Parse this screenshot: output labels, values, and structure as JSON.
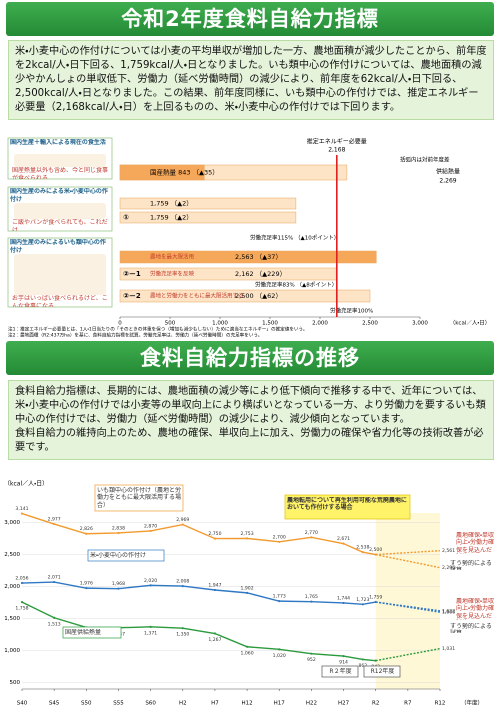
{
  "header": {
    "title": "令和2年度食料自給力指標"
  },
  "intro": "米・小麦中心の作付けについては小麦の平均単収が増加した一方、農地面積が減少したことから、前年度を2kcal/人・日下回る、1,759kcal/人・日となりました。いも類中心の作付けについては、農地面積の減少やかんしょの単収低下、労働力（延べ労働時間）の減少により、前年度を62kcal/人・日下回る、2,500kcal/人・日となりました。この結果、前年度同様に、いも類中心の作付けでは、推定エネルギー必要量（2,168kcal/人・日）を上回るものの、米・小麦中心の作付けでは下回ります。",
  "section2": {
    "title": "食料自給力指標の推移",
    "paragraphs": [
      "食料自給力指標は、長期的には、農地面積の減少等により低下傾向で推移する中で、近年については、米・小麦中心の作付けでは小麦等の単収向上により横ばいとなっている一方、より労働力を要するいも類中心の作付けでは、労働力（延べ労働時間）の減少により、減少傾向となっています。",
      "食料自給力の維持向上のため、農地の確保、単収向上に加え、労働力の確保や省力化等の技術改善が必要です。"
    ]
  },
  "chart_data": [
    {
      "type": "hbar",
      "note": "括弧内は対前年度差",
      "x_label": "（kcal／人・日）",
      "xlim": [
        0,
        3000
      ],
      "xticks": [
        0,
        500,
        {
          "value": 1000,
          "label": "1,000"
        },
        {
          "value": 1500,
          "label": "1,500"
        },
        {
          "value": 2000,
          "label": "2,000"
        },
        {
          "value": 2500,
          "label": "2,500"
        },
        {
          "value": 3000,
          "label": "3,000"
        }
      ],
      "reference": {
        "label": "推定エネルギー必要量",
        "value": 2168,
        "value_label": "2,168",
        "color": "#e02020"
      },
      "supply": {
        "label": "供給熱量",
        "value": 2269,
        "value_label": "2,269",
        "color": "#fde4c6"
      },
      "groups": [
        {
          "label": "国内生産＋輸入による現在の食生活",
          "caption": "国産熱量以外も含め、今と同じ食事が食べられる",
          "bars": [
            {
              "value": 843,
              "text": "国産熱量 843 （▲35）",
              "color": "#f6a85a"
            }
          ]
        },
        {
          "label": "国内生産のみによる米・小麦中心の作付け",
          "caption": "ご飯やパンが食べられても、これだけ",
          "bars": [
            {
              "value": 1759,
              "text": "1,759 （▲2）",
              "color": "#fde4c6"
            },
            {
              "value": 1759,
              "text": "1,759 （▲2）",
              "color": "#fde4c6",
              "marker": "①"
            }
          ],
          "ratios": [
            "労働充足率115% （▲10ポイント）"
          ]
        },
        {
          "label": "国内生産のみによるいも類中心の作付け",
          "caption": "お芋はいっぱい食べられるけど、こんな食事になる",
          "bars": [
            {
              "value": 2563,
              "text": "2,563 （▲37）",
              "tag": "農地を最大限活用",
              "color": "#f6a85a"
            },
            {
              "value": 2162,
              "text": "2,162 （▲229）",
              "tag": "労働充足率を反映",
              "color": "#fde4c6",
              "marker": "②－1"
            },
            {
              "value": 2500,
              "text": "2,500 （▲62）",
              "tag": "農地と労働力をともに最大限活用する",
              "color": "#fde4c6",
              "marker": "②－2"
            }
          ],
          "ratios": [
            "労働充足率83% （▲8ポイント）",
            "労働充足率100%"
          ]
        }
      ],
      "footnotes": [
        "注1：推定エネルギー必要量とは、1人・1日当たりの「そのときの体重を保つ（増加も減少もしない）ために適当なエネルギー」の推定値をいう。",
        "注2：農地面積（R2:437万ha）を基に、食料自給力指標を試算。労働充足率は、労働力（延べ労働時間）の充足率をいう。"
      ]
    },
    {
      "type": "line",
      "y_label": "（kcal／人・日）",
      "x_label": "（年度）",
      "x": [
        1965,
        1970,
        1975,
        1980,
        1985,
        1990,
        1995,
        2000,
        2005,
        2010,
        2015,
        2018,
        2020
      ],
      "xlim": [
        1965,
        2030
      ],
      "xticks": [
        {
          "value": 1965,
          "label": "S40"
        },
        {
          "value": 1970,
          "label": "S45"
        },
        {
          "value": 1975,
          "label": "S50"
        },
        {
          "value": 1980,
          "label": "S55"
        },
        {
          "value": 1985,
          "label": "S60"
        },
        {
          "value": 1990,
          "label": "H2"
        },
        {
          "value": 1995,
          "label": "H7"
        },
        {
          "value": 2000,
          "label": "H12"
        },
        {
          "value": 2005,
          "label": "H17"
        },
        {
          "value": 2010,
          "label": "H22"
        },
        {
          "value": 2015,
          "label": "H27"
        },
        {
          "value": 2020,
          "label": "R2"
        },
        {
          "value": 2025,
          "label": "R7"
        },
        {
          "value": 2030,
          "label": "R12"
        }
      ],
      "ylim": [
        400,
        3150
      ],
      "yticks": [
        500,
        {
          "value": 1000,
          "label": "1,000"
        },
        {
          "value": 1500,
          "label": "1,500"
        },
        {
          "value": 2000,
          "label": "2,000"
        },
        {
          "value": 2500,
          "label": "2,500"
        },
        {
          "value": 3000,
          "label": "3,000"
        }
      ],
      "grid": true,
      "series": [
        {
          "color": "#f29a2e",
          "values": [
            3141,
            2977,
            2826,
            2838,
            2870,
            2969,
            2750,
            2753,
            2700,
            2770,
            2671,
            2538,
            2500
          ],
          "value_labels": [
            "3,141",
            "2,977",
            "2,826",
            "2,838",
            "2,870",
            "2,969",
            "2,750",
            "2,753",
            "2,700",
            "2,770",
            "2,671",
            "2,538",
            "2,500"
          ]
        },
        {
          "color": "#2f78c4",
          "values": [
            2056,
            2071,
            1976,
            1968,
            2020,
            2008,
            1947,
            1902,
            1773,
            1765,
            1744,
            1723,
            1759
          ],
          "value_labels": [
            "2,056",
            "2,071",
            "1,976",
            "1,968",
            "2,020",
            "2,008",
            "1,947",
            "1,902",
            "1,773",
            "1,765",
            "1,744",
            "1,723",
            "1,759"
          ]
        },
        {
          "color": "#2a9a3c",
          "values": [
            1758,
            1513,
            1362,
            1357,
            1371,
            1350,
            1267,
            1060,
            1020,
            952,
            914,
            862,
            843
          ],
          "value_labels": [
            "1,758",
            "1,513",
            "1,362",
            "1,357",
            "1,371",
            "1,350",
            "1,267",
            "1,060",
            "1,020",
            "952",
            "914",
            "862",
            "843"
          ]
        }
      ],
      "projections": [
        {
          "color": "#f29a2e",
          "x": [
            2020,
            2030
          ],
          "values": [
            2500,
            2561
          ],
          "value_labels": [
            null,
            "2,561"
          ]
        },
        {
          "color": "#f29a2e",
          "x": [
            2020,
            2030
          ],
          "values": [
            2500,
            2296
          ],
          "value_labels": [
            null,
            "2,296"
          ]
        },
        {
          "color": "#2f78c4",
          "x": [
            2020,
            2030
          ],
          "values": [
            1759,
            1622
          ],
          "value_labels": [
            null,
            "1,622"
          ]
        },
        {
          "color": "#2f78c4",
          "x": [
            2020,
            2030
          ],
          "values": [
            1759,
            1600
          ],
          "value_labels": [
            null,
            "1,600"
          ]
        },
        {
          "color": "#2a9a3c",
          "x": [
            2020,
            2030
          ],
          "values": [
            843,
            1031
          ],
          "value_labels": [
            null,
            "1,031"
          ]
        }
      ],
      "annotations": [
        "いも類中心の作付け（農地と労働力をともに最大限活用する場合）",
        "米・小麦中心の作付け",
        "国産供給熱量",
        "農地転用について再生利用可能な荒廃農地においても作付けする場合",
        "農地確保・単収向上・労働力確保を見込んだ試算",
        "すう勢的による試算",
        "農地確保・単収向上・労働力確保を見込んだ試算",
        "すう勢的による試算",
        "R２年度",
        "R12年度"
      ]
    }
  ]
}
